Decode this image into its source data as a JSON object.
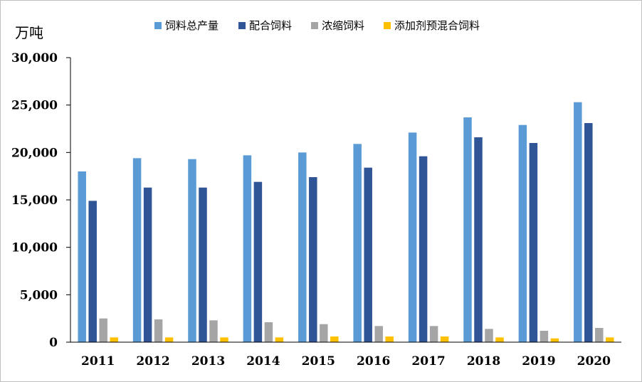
{
  "chart_data": {
    "type": "bar",
    "title": "",
    "xlabel": "",
    "ylabel": "万吨",
    "categories": [
      "2011",
      "2012",
      "2013",
      "2014",
      "2015",
      "2016",
      "2017",
      "2018",
      "2019",
      "2020"
    ],
    "series": [
      {
        "name": "饲料总产量",
        "color": "#5b9bd5",
        "values": [
          18000,
          19400,
          19300,
          19700,
          20000,
          20900,
          22100,
          23700,
          22900,
          25300
        ]
      },
      {
        "name": "配合饲料",
        "color": "#2f5597",
        "values": [
          14900,
          16300,
          16300,
          16900,
          17400,
          18400,
          19600,
          21600,
          21000,
          23100
        ]
      },
      {
        "name": "浓缩饲料",
        "color": "#a5a5a5",
        "values": [
          2500,
          2400,
          2300,
          2100,
          1900,
          1700,
          1700,
          1400,
          1200,
          1500
        ]
      },
      {
        "name": "添加剂预混合饲料",
        "color": "#ffc000",
        "values": [
          500,
          500,
          500,
          500,
          600,
          600,
          600,
          500,
          400,
          500
        ]
      }
    ],
    "ylim": [
      0,
      30000
    ],
    "yticks": [
      0,
      5000,
      10000,
      15000,
      20000,
      25000,
      30000
    ],
    "ytick_labels": [
      "0",
      "5,000",
      "10,000",
      "15,000",
      "20,000",
      "25,000",
      "30,000"
    ],
    "grid": false,
    "legend_position": "top"
  }
}
